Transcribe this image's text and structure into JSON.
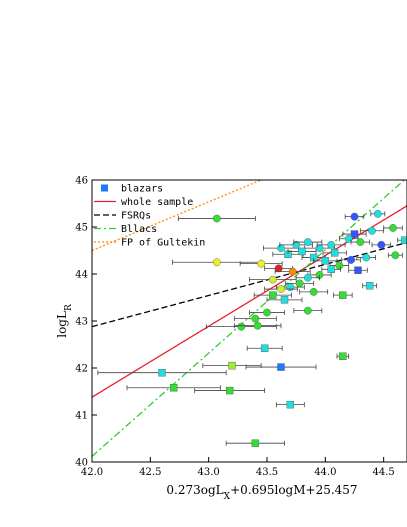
{
  "chart_data": {
    "type": "scatter",
    "title": "",
    "xlabel_parts": {
      "a": "0.273ogL",
      "a_sub": "X",
      "b": "+0.695logM+25.457"
    },
    "ylabel_parts": {
      "a": "logL",
      "a_sub": "R"
    },
    "xlim": [
      42.0,
      44.7
    ],
    "ylim": [
      40,
      46
    ],
    "x_ticks": [
      42.0,
      42.5,
      43.0,
      43.5,
      44.0,
      44.5
    ],
    "x_tick_labels": [
      "42.0",
      "42.5",
      "43.0",
      "43.5",
      "44.0",
      "44.5"
    ],
    "y_ticks": [
      40,
      41,
      42,
      43,
      44,
      45,
      46
    ],
    "y_tick_labels": [
      "40",
      "41",
      "42",
      "43",
      "44",
      "45",
      "46"
    ],
    "legend": {
      "placement": "top-left",
      "entries": [
        {
          "label": "blazars",
          "kind": "marker",
          "color": "#1f77ff"
        },
        {
          "label": "whole sample",
          "kind": "line",
          "color": "#e8202a",
          "dash": "solid"
        },
        {
          "label": "FSRQs",
          "kind": "line",
          "color": "#000000",
          "dash": "dashed"
        },
        {
          "label": "Bllacs",
          "kind": "line",
          "color": "#33cc33",
          "dash": "dashdot"
        },
        {
          "label": "FP of Gultekin",
          "kind": "line",
          "color": "#ff8c00",
          "dash": "dotted"
        }
      ]
    },
    "lines": [
      {
        "name": "whole sample",
        "color": "#e8202a",
        "dash": "solid",
        "points": [
          [
            42.0,
            41.38
          ],
          [
            44.7,
            45.45
          ]
        ]
      },
      {
        "name": "FSRQs",
        "color": "#000000",
        "dash": "dashed",
        "points": [
          [
            42.0,
            42.88
          ],
          [
            44.7,
            44.67
          ]
        ]
      },
      {
        "name": "Bllacs",
        "color": "#33cc33",
        "dash": "dashdot",
        "points": [
          [
            42.0,
            40.12
          ],
          [
            44.7,
            46.05
          ]
        ]
      },
      {
        "name": "FP of Gultekin",
        "color": "#ff8c00",
        "dash": "dotted",
        "points": [
          [
            42.0,
            44.5
          ],
          [
            43.45,
            46.0
          ]
        ]
      }
    ],
    "points": [
      {
        "x": 43.07,
        "y": 45.18,
        "xerr": 0.33,
        "color": "#33dd33",
        "shape": "circle"
      },
      {
        "x": 43.07,
        "y": 44.25,
        "xerr": 0.38,
        "color": "#eeee22",
        "shape": "circle"
      },
      {
        "x": 43.45,
        "y": 44.22,
        "xerr": 0.18,
        "color": "#eeee22",
        "shape": "circle"
      },
      {
        "x": 43.6,
        "y": 44.12,
        "xerr": 0.12,
        "color": "#dd2222",
        "shape": "circle"
      },
      {
        "x": 43.72,
        "y": 44.05,
        "xerr": 0.15,
        "color": "#ff8800",
        "shape": "circle"
      },
      {
        "x": 43.55,
        "y": 43.88,
        "xerr": 0.2,
        "color": "#ccee33",
        "shape": "circle"
      },
      {
        "x": 43.62,
        "y": 44.55,
        "xerr": 0.15,
        "color": "#22dddd",
        "shape": "circle"
      },
      {
        "x": 43.75,
        "y": 44.62,
        "xerr": 0.14,
        "color": "#22dddd",
        "shape": "circle"
      },
      {
        "x": 43.85,
        "y": 44.68,
        "xerr": 0.12,
        "color": "#22dddd",
        "shape": "circle"
      },
      {
        "x": 43.95,
        "y": 44.55,
        "xerr": 0.13,
        "color": "#22dddd",
        "shape": "circle"
      },
      {
        "x": 44.05,
        "y": 44.62,
        "xerr": 0.12,
        "color": "#22dddd",
        "shape": "circle"
      },
      {
        "x": 43.68,
        "y": 44.42,
        "xerr": 0.13,
        "color": "#22dddd",
        "shape": "square"
      },
      {
        "x": 43.8,
        "y": 44.48,
        "xerr": 0.12,
        "color": "#22dddd",
        "shape": "square"
      },
      {
        "x": 43.9,
        "y": 44.35,
        "xerr": 0.1,
        "color": "#22dddd",
        "shape": "square"
      },
      {
        "x": 44.0,
        "y": 44.28,
        "xerr": 0.1,
        "color": "#22dddd",
        "shape": "square"
      },
      {
        "x": 44.08,
        "y": 44.45,
        "xerr": 0.1,
        "color": "#22dddd",
        "shape": "square"
      },
      {
        "x": 44.25,
        "y": 45.22,
        "xerr": 0.08,
        "color": "#3355ff",
        "shape": "circle"
      },
      {
        "x": 44.45,
        "y": 45.28,
        "xerr": 0.06,
        "color": "#22dddd",
        "shape": "circle"
      },
      {
        "x": 44.58,
        "y": 44.98,
        "xerr": 0.08,
        "color": "#33dd33",
        "shape": "circle"
      },
      {
        "x": 44.4,
        "y": 44.92,
        "xerr": 0.1,
        "color": "#22dddd",
        "shape": "circle"
      },
      {
        "x": 44.25,
        "y": 44.85,
        "xerr": 0.1,
        "color": "#3355ff",
        "shape": "square"
      },
      {
        "x": 44.2,
        "y": 44.75,
        "xerr": 0.08,
        "color": "#22dddd",
        "shape": "circle"
      },
      {
        "x": 44.3,
        "y": 44.68,
        "xerr": 0.08,
        "color": "#33dd33",
        "shape": "circle"
      },
      {
        "x": 44.48,
        "y": 44.62,
        "xerr": 0.08,
        "color": "#3355ff",
        "shape": "circle"
      },
      {
        "x": 44.6,
        "y": 44.4,
        "xerr": 0.06,
        "color": "#33dd33",
        "shape": "circle"
      },
      {
        "x": 44.68,
        "y": 44.72,
        "xerr": 0.06,
        "color": "#22dddd",
        "shape": "square"
      },
      {
        "x": 44.35,
        "y": 44.35,
        "xerr": 0.08,
        "color": "#22dddd",
        "shape": "circle"
      },
      {
        "x": 44.22,
        "y": 44.3,
        "xerr": 0.08,
        "color": "#3355ff",
        "shape": "circle"
      },
      {
        "x": 44.12,
        "y": 44.18,
        "xerr": 0.08,
        "color": "#33dd33",
        "shape": "circle"
      },
      {
        "x": 44.05,
        "y": 44.1,
        "xerr": 0.08,
        "color": "#22dddd",
        "shape": "square"
      },
      {
        "x": 43.95,
        "y": 43.98,
        "xerr": 0.1,
        "color": "#33dd33",
        "shape": "circle"
      },
      {
        "x": 43.85,
        "y": 43.92,
        "xerr": 0.1,
        "color": "#22dddd",
        "shape": "circle"
      },
      {
        "x": 43.78,
        "y": 43.8,
        "xerr": 0.12,
        "color": "#33dd33",
        "shape": "circle"
      },
      {
        "x": 43.7,
        "y": 43.72,
        "xerr": 0.12,
        "color": "#22dddd",
        "shape": "circle"
      },
      {
        "x": 43.62,
        "y": 43.68,
        "xerr": 0.14,
        "color": "#ccee33",
        "shape": "circle"
      },
      {
        "x": 43.55,
        "y": 43.55,
        "xerr": 0.16,
        "color": "#33dd33",
        "shape": "square"
      },
      {
        "x": 43.65,
        "y": 43.45,
        "xerr": 0.15,
        "color": "#22dddd",
        "shape": "square"
      },
      {
        "x": 43.9,
        "y": 43.62,
        "xerr": 0.12,
        "color": "#33dd33",
        "shape": "circle"
      },
      {
        "x": 44.15,
        "y": 43.55,
        "xerr": 0.08,
        "color": "#33dd33",
        "shape": "square"
      },
      {
        "x": 44.28,
        "y": 44.08,
        "xerr": 0.08,
        "color": "#3355ff",
        "shape": "square"
      },
      {
        "x": 44.38,
        "y": 43.75,
        "xerr": 0.06,
        "color": "#22dddd",
        "shape": "square"
      },
      {
        "x": 43.85,
        "y": 43.22,
        "xerr": 0.12,
        "color": "#33dd33",
        "shape": "circle"
      },
      {
        "x": 43.5,
        "y": 43.18,
        "xerr": 0.15,
        "color": "#33dd33",
        "shape": "circle"
      },
      {
        "x": 43.4,
        "y": 43.05,
        "xerr": 0.18,
        "color": "#33dd33",
        "shape": "circle"
      },
      {
        "x": 43.28,
        "y": 42.88,
        "xerr": 0.3,
        "color": "#33dd33",
        "shape": "circle"
      },
      {
        "x": 43.42,
        "y": 42.9,
        "xerr": 0.2,
        "color": "#33dd33",
        "shape": "circle"
      },
      {
        "x": 43.48,
        "y": 42.42,
        "xerr": 0.15,
        "color": "#22dddd",
        "shape": "square"
      },
      {
        "x": 43.62,
        "y": 42.02,
        "xerr": 0.3,
        "color": "#1f77ff",
        "shape": "square"
      },
      {
        "x": 43.2,
        "y": 42.05,
        "xerr": 0.25,
        "color": "#99ee33",
        "shape": "square"
      },
      {
        "x": 42.6,
        "y": 41.9,
        "xerr": 0.55,
        "color": "#22dddd",
        "shape": "square"
      },
      {
        "x": 42.7,
        "y": 41.58,
        "xerr": 0.4,
        "color": "#33dd33",
        "shape": "square"
      },
      {
        "x": 43.18,
        "y": 41.52,
        "xerr": 0.3,
        "color": "#33dd33",
        "shape": "square"
      },
      {
        "x": 43.7,
        "y": 41.22,
        "xerr": 0.12,
        "color": "#22dddd",
        "shape": "square"
      },
      {
        "x": 44.15,
        "y": 42.25,
        "xerr": 0.05,
        "color": "#33dd33",
        "shape": "square"
      },
      {
        "x": 43.4,
        "y": 40.4,
        "xerr": 0.25,
        "color": "#33dd33",
        "shape": "square"
      }
    ]
  }
}
